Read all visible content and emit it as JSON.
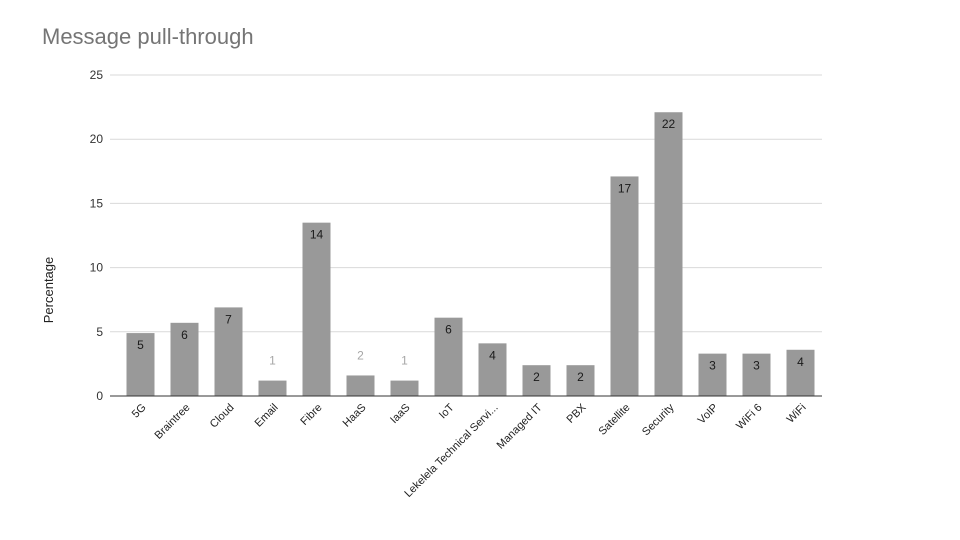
{
  "chart_data": {
    "type": "bar",
    "title": "Message pull-through",
    "xlabel": "",
    "ylabel": "Percentage",
    "ylim": [
      0,
      25
    ],
    "yticks": [
      0,
      5,
      10,
      15,
      20,
      25
    ],
    "grid": true,
    "legend": "none",
    "bar_color": "#999999",
    "categories": [
      "5G",
      "Braintree",
      "Cloud",
      "Email",
      "Fibre",
      "HaaS",
      "IaaS",
      "IoT",
      "Lekelela Technical Servi...",
      "Managed IT",
      "PBX",
      "Satellite",
      "Security",
      "VoIP",
      "WiFi 6",
      "WiFi"
    ],
    "values": [
      4.9,
      5.7,
      6.9,
      1.2,
      13.5,
      1.6,
      1.2,
      6.1,
      4.1,
      2.4,
      2.4,
      17.1,
      22.1,
      3.3,
      3.3,
      3.6
    ],
    "data_labels": [
      "5",
      "6",
      "7",
      "1",
      "14",
      "2",
      "1",
      "6",
      "4",
      "2",
      "2",
      "17",
      "22",
      "3",
      "3",
      "4"
    ]
  }
}
